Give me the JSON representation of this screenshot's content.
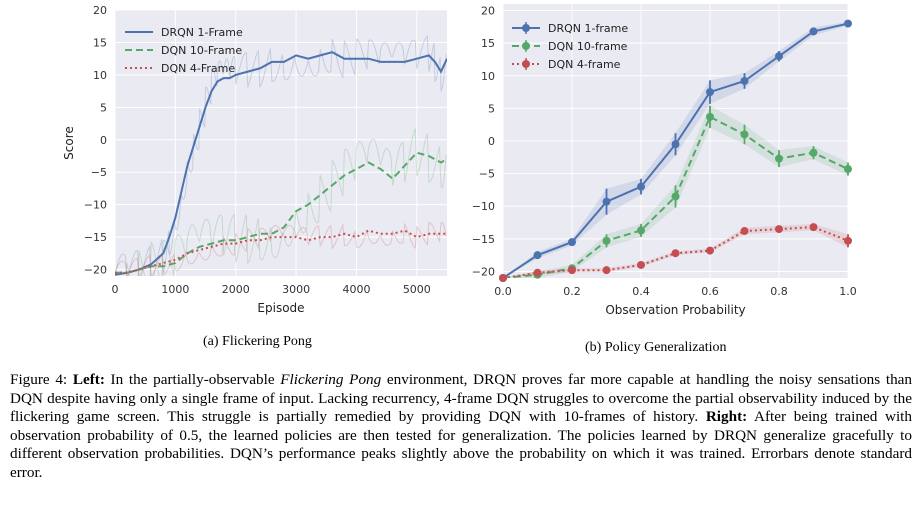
{
  "left_panel": {
    "subcaption": "(a) Flickering Pong"
  },
  "right_panel": {
    "subcaption": "(b) Policy Generalization"
  },
  "caption": {
    "label": "Figure 4: ",
    "left_head": "Left:",
    "text1": " In the partially-observable ",
    "env_name": "Flickering Pong",
    "text2": " environment, DRQN proves far more capable at handling the noisy sensations than DQN despite having only a single frame of input. Lacking recurrency, 4-frame DQN struggles to overcome the partial observability induced by the flickering game screen. This struggle is partially remedied by providing DQN with 10-frames of history. ",
    "right_head": "Right:",
    "text3": " After being trained with observation probability of 0.5, the learned policies are then tested for generalization. The policies learned by DRQN generalize gracefully to different observation probabilities. DQN’s performance peaks slightly above the probability on which it was trained. Errorbars denote standard error."
  },
  "chart_data": [
    {
      "type": "line",
      "xlabel": "Episode",
      "ylabel": "Score",
      "xlim": [
        0,
        5500
      ],
      "ylim": [
        -21,
        20
      ],
      "xticks": [
        0,
        1000,
        2000,
        3000,
        4000,
        5000
      ],
      "yticks": [
        -20,
        -15,
        -10,
        -5,
        0,
        5,
        10,
        15,
        20
      ],
      "grid": true,
      "legend_position": "top-left",
      "series": [
        {
          "name": "DRQN 1-Frame",
          "color": "#4c72b0",
          "style": "solid",
          "x": [
            0,
            200,
            400,
            600,
            800,
            900,
            1000,
            1100,
            1200,
            1300,
            1400,
            1500,
            1600,
            1700,
            1800,
            1900,
            2000,
            2200,
            2400,
            2600,
            2800,
            3000,
            3200,
            3400,
            3600,
            3800,
            4000,
            4200,
            4400,
            4600,
            4800,
            5000,
            5200,
            5300,
            5400,
            5500
          ],
          "y": [
            -20.8,
            -20.5,
            -20,
            -19.2,
            -17.5,
            -15,
            -12,
            -8,
            -4,
            -1,
            2,
            5,
            7.5,
            9,
            9.5,
            9.5,
            10,
            10.5,
            11,
            12,
            12,
            13,
            12.5,
            13,
            13.5,
            12.5,
            12.5,
            12.5,
            12,
            12,
            12,
            12.5,
            13,
            12,
            10.5,
            12.5
          ]
        },
        {
          "name": "DQN 10-Frame",
          "color": "#55a868",
          "style": "dashed",
          "x": [
            0,
            200,
            400,
            600,
            800,
            1000,
            1200,
            1400,
            1600,
            1800,
            2000,
            2200,
            2400,
            2600,
            2800,
            3000,
            3200,
            3400,
            3600,
            3800,
            4000,
            4200,
            4400,
            4600,
            4800,
            5000,
            5200,
            5400,
            5500
          ],
          "y": [
            -20.5,
            -20.5,
            -20,
            -19.5,
            -19.5,
            -19,
            -17.5,
            -16.5,
            -16,
            -15.5,
            -15.5,
            -15,
            -14.5,
            -14.5,
            -13.5,
            -11,
            -10,
            -8.5,
            -7,
            -5.5,
            -4.5,
            -3.5,
            -4.5,
            -6,
            -4,
            -2,
            -2.5,
            -3.5,
            -3
          ]
        },
        {
          "name": "DQN 4-Frame",
          "color": "#c44e52",
          "style": "dotted",
          "x": [
            0,
            200,
            400,
            600,
            800,
            1000,
            1200,
            1400,
            1600,
            1800,
            2000,
            2200,
            2400,
            2600,
            2800,
            3000,
            3200,
            3400,
            3600,
            3800,
            4000,
            4200,
            4400,
            4600,
            4800,
            5000,
            5200,
            5400,
            5500
          ],
          "y": [
            -20.5,
            -20.5,
            -20,
            -19.5,
            -19,
            -18.5,
            -17.5,
            -17,
            -16.5,
            -16,
            -16,
            -15.5,
            -15.5,
            -15,
            -15,
            -15,
            -15.5,
            -15,
            -15,
            -14.5,
            -15,
            -14,
            -14.5,
            -14.5,
            -14,
            -15,
            -14.5,
            -14.5,
            -14.5
          ]
        }
      ]
    },
    {
      "type": "line",
      "xlabel": "Observation Probability",
      "ylabel": "",
      "xlim": [
        0,
        1
      ],
      "ylim": [
        -21,
        21
      ],
      "xticks": [
        0.0,
        0.2,
        0.4,
        0.6,
        0.8,
        1.0
      ],
      "xticklabels": [
        "0.0",
        "0.2",
        "0.4",
        "0.6",
        "0.8",
        "1.0"
      ],
      "yticks": [
        -20,
        -15,
        -10,
        -5,
        0,
        5,
        10,
        15,
        20
      ],
      "grid": true,
      "legend_position": "top-left",
      "series": [
        {
          "name": "DRQN 1-frame",
          "color": "#4c72b0",
          "style": "solid",
          "x": [
            0.0,
            0.1,
            0.2,
            0.3,
            0.4,
            0.5,
            0.6,
            0.7,
            0.8,
            0.9,
            1.0
          ],
          "y": [
            -21,
            -17.5,
            -15.5,
            -9.3,
            -7,
            -0.5,
            7.5,
            9.2,
            13,
            16.8,
            18
          ],
          "err": [
            0,
            0.5,
            0.5,
            2,
            1.2,
            1.7,
            1.8,
            1.2,
            0.8,
            0.6,
            0.3
          ]
        },
        {
          "name": "DQN 10-frame",
          "color": "#55a868",
          "style": "dashed",
          "x": [
            0.0,
            0.1,
            0.2,
            0.3,
            0.4,
            0.5,
            0.6,
            0.7,
            0.8,
            0.9,
            1.0
          ],
          "y": [
            -21,
            -20.5,
            -19.5,
            -15.3,
            -13.7,
            -8.5,
            3.7,
            1,
            -2.7,
            -1.8,
            -4.3
          ],
          "err": [
            0,
            0.5,
            0.5,
            1,
            1,
            1.7,
            1.7,
            1.5,
            1.3,
            1,
            1
          ]
        },
        {
          "name": "DQN 4-frame",
          "color": "#c44e52",
          "style": "dotted",
          "x": [
            0.0,
            0.1,
            0.2,
            0.3,
            0.4,
            0.5,
            0.6,
            0.7,
            0.8,
            0.9,
            1.0
          ],
          "y": [
            -21,
            -20.2,
            -19.8,
            -19.8,
            -19,
            -17.2,
            -16.8,
            -13.8,
            -13.5,
            -13.2,
            -15.3
          ],
          "err": [
            0,
            0.3,
            0.3,
            0.3,
            0.3,
            0.3,
            0.3,
            0.5,
            0.5,
            0.5,
            1
          ]
        }
      ]
    }
  ]
}
